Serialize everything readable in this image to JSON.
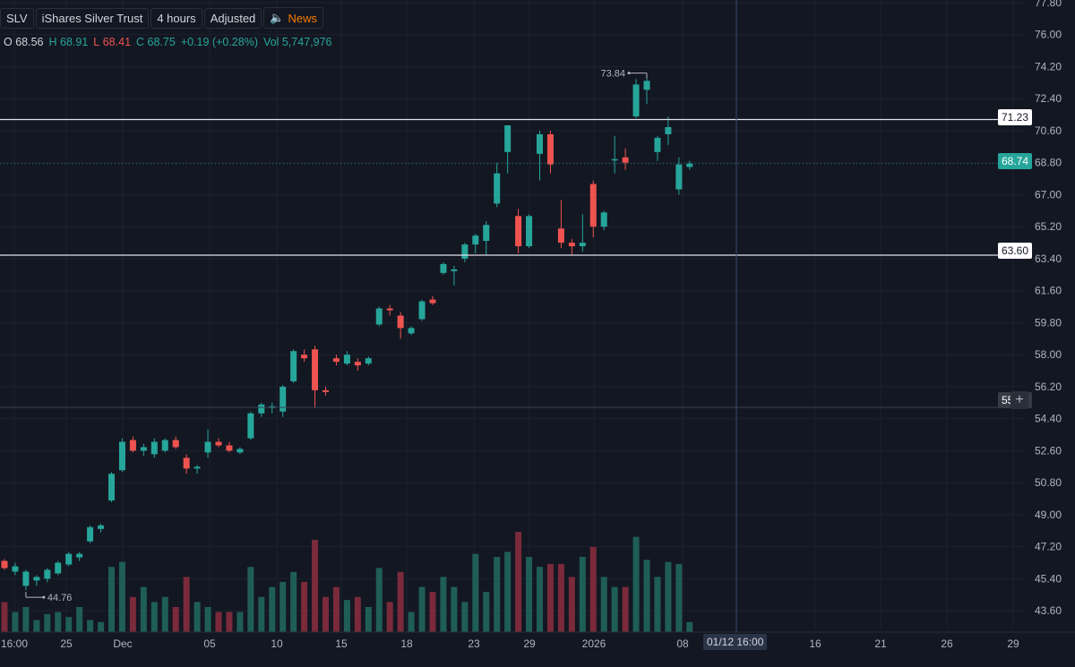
{
  "header": {
    "symbol": "SLV",
    "name": "iShares Silver Trust",
    "interval": "4 hours",
    "adjustment": "Adjusted",
    "news_label": "News"
  },
  "ohlc": {
    "o_label": "O",
    "o": "68.56",
    "h_label": "H",
    "h": "68.91",
    "l_label": "L",
    "l": "68.41",
    "c_label": "C",
    "c": "68.75",
    "change": "+0.19 (+0.28%)",
    "vol_label": "Vol",
    "vol": "5,747,976"
  },
  "price_tags": {
    "upper_line": "71.23",
    "current": "68.74",
    "lower_line": "63.60",
    "crosshair": "55.04"
  },
  "crosshair_time": "01/12 16:00",
  "high_marker": "73.84",
  "low_marker": "44.76",
  "colors": {
    "up": "#26a69a",
    "down": "#ef5350",
    "background": "#131722",
    "news": "#f57c00"
  },
  "icons": {
    "news": "speaker-icon",
    "crosshair_add": "plus-icon"
  },
  "chart_data": {
    "type": "candlestick",
    "y_axis_ticks": [
      "77.80",
      "76.00",
      "74.20",
      "72.40",
      "70.60",
      "68.80",
      "67.00",
      "65.20",
      "63.40",
      "61.60",
      "59.80",
      "58.00",
      "56.20",
      "54.40",
      "52.60",
      "50.80",
      "49.00",
      "47.20",
      "45.40",
      "43.60"
    ],
    "x_axis_ticks": [
      "16:00",
      "25",
      "Dec",
      "05",
      "10",
      "15",
      "18",
      "23",
      "29",
      "2026",
      "08",
      "16",
      "21",
      "26",
      "29"
    ],
    "ylim": [
      42.6,
      77.8
    ],
    "horizontal_lines": [
      71.23,
      63.6
    ],
    "candles": [
      [
        46.4,
        46.5,
        45.9,
        46.0
      ],
      [
        45.8,
        46.3,
        45.6,
        46.1
      ],
      [
        45.0,
        45.9,
        44.76,
        45.8
      ],
      [
        45.3,
        45.6,
        45.0,
        45.5
      ],
      [
        45.4,
        46.0,
        45.2,
        45.9
      ],
      [
        45.7,
        46.4,
        45.6,
        46.3
      ],
      [
        46.2,
        46.9,
        46.1,
        46.8
      ],
      [
        46.6,
        46.9,
        46.4,
        46.8
      ],
      [
        47.5,
        48.4,
        47.4,
        48.3
      ],
      [
        48.2,
        48.5,
        48.0,
        48.4
      ],
      [
        49.8,
        51.4,
        49.7,
        51.3
      ],
      [
        51.5,
        53.3,
        51.4,
        53.1
      ],
      [
        53.2,
        53.4,
        52.5,
        52.6
      ],
      [
        52.6,
        53.0,
        52.3,
        52.8
      ],
      [
        52.4,
        53.3,
        52.2,
        53.1
      ],
      [
        52.6,
        53.3,
        52.5,
        53.2
      ],
      [
        53.2,
        53.4,
        52.7,
        52.8
      ],
      [
        52.2,
        52.4,
        51.3,
        51.6
      ],
      [
        51.6,
        51.8,
        51.3,
        51.7
      ],
      [
        52.5,
        53.8,
        52.2,
        53.1
      ],
      [
        53.1,
        53.3,
        52.8,
        52.9
      ],
      [
        52.9,
        53.1,
        52.5,
        52.6
      ],
      [
        52.5,
        52.8,
        52.4,
        52.7
      ],
      [
        53.3,
        54.8,
        53.2,
        54.7
      ],
      [
        54.7,
        55.3,
        54.5,
        55.2
      ],
      [
        55.0,
        55.3,
        54.7,
        55.1
      ],
      [
        54.8,
        56.3,
        54.5,
        56.2
      ],
      [
        56.5,
        58.3,
        56.4,
        58.2
      ],
      [
        58.0,
        58.3,
        57.6,
        57.8
      ],
      [
        58.3,
        58.5,
        55.0,
        56.0
      ],
      [
        56.0,
        56.2,
        55.7,
        55.9
      ],
      [
        57.8,
        58.0,
        57.4,
        57.6
      ],
      [
        57.5,
        58.2,
        57.4,
        58.0
      ],
      [
        57.6,
        57.8,
        57.1,
        57.4
      ],
      [
        57.5,
        57.9,
        57.4,
        57.8
      ],
      [
        59.7,
        60.7,
        59.6,
        60.6
      ],
      [
        60.6,
        60.8,
        60.2,
        60.5
      ],
      [
        60.2,
        60.4,
        58.9,
        59.5
      ],
      [
        59.2,
        59.6,
        59.1,
        59.5
      ],
      [
        60.0,
        61.1,
        59.9,
        61.0
      ],
      [
        61.1,
        61.3,
        60.8,
        60.9
      ],
      [
        62.6,
        63.2,
        62.5,
        63.1
      ],
      [
        62.7,
        63.0,
        61.9,
        62.8
      ],
      [
        63.4,
        64.3,
        63.2,
        64.2
      ],
      [
        64.2,
        64.8,
        63.7,
        64.7
      ],
      [
        64.4,
        65.5,
        63.6,
        65.3
      ],
      [
        66.5,
        68.8,
        66.3,
        68.2
      ],
      [
        69.4,
        70.9,
        68.2,
        70.9
      ],
      [
        65.8,
        66.2,
        63.7,
        64.1
      ],
      [
        64.1,
        65.9,
        64.0,
        65.8
      ],
      [
        69.3,
        70.6,
        67.8,
        70.4
      ],
      [
        70.4,
        70.6,
        68.2,
        68.7
      ],
      [
        65.1,
        66.7,
        64.0,
        64.3
      ],
      [
        64.3,
        64.5,
        63.6,
        64.1
      ],
      [
        64.1,
        65.9,
        63.8,
        64.3
      ],
      [
        67.6,
        67.8,
        64.6,
        65.2
      ],
      [
        65.2,
        66.1,
        65.0,
        66.0
      ],
      [
        69.0,
        70.3,
        68.2,
        69.0
      ],
      [
        69.1,
        69.6,
        68.4,
        68.8
      ],
      [
        71.4,
        73.5,
        71.3,
        73.2
      ],
      [
        72.9,
        73.84,
        72.1,
        73.4
      ],
      [
        69.4,
        70.3,
        68.9,
        70.2
      ],
      [
        70.4,
        71.4,
        69.8,
        70.8
      ],
      [
        67.3,
        69.1,
        67.0,
        68.7
      ],
      [
        68.56,
        68.91,
        68.41,
        68.75
      ]
    ],
    "volume_levels": [
      0.3,
      0.2,
      0.25,
      0.12,
      0.18,
      0.2,
      0.15,
      0.25,
      0.12,
      0.1,
      0.65,
      0.7,
      0.35,
      0.45,
      0.3,
      0.35,
      0.25,
      0.55,
      0.3,
      0.25,
      0.2,
      0.2,
      0.2,
      0.65,
      0.35,
      0.45,
      0.5,
      0.6,
      0.5,
      0.92,
      0.35,
      0.45,
      0.32,
      0.35,
      0.25,
      0.64,
      0.3,
      0.6,
      0.2,
      0.45,
      0.4,
      0.55,
      0.45,
      0.3,
      0.78,
      0.4,
      0.75,
      0.8,
      1.0,
      0.75,
      0.65,
      0.68,
      0.68,
      0.55,
      0.75,
      0.85,
      0.55,
      0.45,
      0.45,
      0.95,
      0.72,
      0.55,
      0.7,
      0.68,
      0.1
    ]
  }
}
